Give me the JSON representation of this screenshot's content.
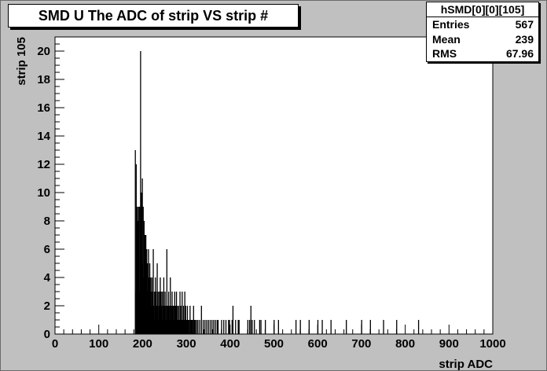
{
  "title": "SMD U The ADC of strip VS strip #",
  "stats": {
    "name": "hSMD[0][0][105]",
    "rows": [
      {
        "label": "Entries",
        "value": "567"
      },
      {
        "label": "Mean",
        "value": "239"
      },
      {
        "label": "RMS",
        "value": "67.96"
      }
    ]
  },
  "chart_data": {
    "type": "bar",
    "histogram_style": "step",
    "xlabel": "strip ADC",
    "ylabel": "strip 105",
    "xlim": [
      0,
      1000
    ],
    "ylim": [
      0,
      21
    ],
    "x_ticks": [
      0,
      100,
      200,
      300,
      400,
      500,
      600,
      700,
      800,
      900,
      1000
    ],
    "y_ticks": [
      0,
      2,
      4,
      6,
      8,
      10,
      12,
      14,
      16,
      18,
      20
    ],
    "bin_width": 1,
    "bins": [
      [
        183,
        13
      ],
      [
        184,
        3
      ],
      [
        185,
        12
      ],
      [
        186,
        7
      ],
      [
        187,
        9
      ],
      [
        188,
        9
      ],
      [
        189,
        4
      ],
      [
        190,
        8
      ],
      [
        191,
        9
      ],
      [
        192,
        3
      ],
      [
        193,
        9
      ],
      [
        194,
        8
      ],
      [
        195,
        20
      ],
      [
        196,
        6
      ],
      [
        197,
        10
      ],
      [
        198,
        6
      ],
      [
        199,
        11
      ],
      [
        200,
        5
      ],
      [
        201,
        9
      ],
      [
        202,
        4
      ],
      [
        203,
        8
      ],
      [
        204,
        6
      ],
      [
        205,
        7
      ],
      [
        206,
        4
      ],
      [
        207,
        7
      ],
      [
        208,
        5
      ],
      [
        209,
        6
      ],
      [
        210,
        3
      ],
      [
        211,
        5
      ],
      [
        212,
        4
      ],
      [
        213,
        6
      ],
      [
        214,
        2
      ],
      [
        215,
        4
      ],
      [
        216,
        5
      ],
      [
        217,
        3
      ],
      [
        218,
        4
      ],
      [
        219,
        2
      ],
      [
        220,
        3
      ],
      [
        221,
        4
      ],
      [
        222,
        2
      ],
      [
        223,
        3
      ],
      [
        224,
        6
      ],
      [
        225,
        2
      ],
      [
        226,
        1
      ],
      [
        227,
        3
      ],
      [
        228,
        2
      ],
      [
        229,
        4
      ],
      [
        230,
        3
      ],
      [
        231,
        1
      ],
      [
        232,
        2
      ],
      [
        233,
        5
      ],
      [
        234,
        2
      ],
      [
        235,
        3
      ],
      [
        236,
        1
      ],
      [
        237,
        2
      ],
      [
        238,
        3
      ],
      [
        239,
        2
      ],
      [
        240,
        4
      ],
      [
        241,
        1
      ],
      [
        242,
        3
      ],
      [
        243,
        2
      ],
      [
        244,
        1
      ],
      [
        245,
        3
      ],
      [
        246,
        2
      ],
      [
        247,
        1
      ],
      [
        248,
        4
      ],
      [
        249,
        1
      ],
      [
        250,
        2
      ],
      [
        251,
        3
      ],
      [
        252,
        1
      ],
      [
        253,
        2
      ],
      [
        254,
        1
      ],
      [
        255,
        6
      ],
      [
        256,
        1
      ],
      [
        257,
        2
      ],
      [
        258,
        1
      ],
      [
        259,
        3
      ],
      [
        260,
        2
      ],
      [
        261,
        1
      ],
      [
        262,
        2
      ],
      [
        263,
        4
      ],
      [
        264,
        1
      ],
      [
        265,
        2
      ],
      [
        266,
        1
      ],
      [
        267,
        3
      ],
      [
        268,
        1
      ],
      [
        269,
        2
      ],
      [
        270,
        1
      ],
      [
        271,
        2
      ],
      [
        272,
        1
      ],
      [
        273,
        3
      ],
      [
        274,
        1
      ],
      [
        275,
        2
      ],
      [
        276,
        1
      ],
      [
        277,
        3
      ],
      [
        278,
        1
      ],
      [
        279,
        2
      ],
      [
        280,
        1
      ],
      [
        281,
        1
      ],
      [
        282,
        2
      ],
      [
        283,
        1
      ],
      [
        284,
        1
      ],
      [
        285,
        3
      ],
      [
        286,
        1
      ],
      [
        287,
        2
      ],
      [
        288,
        1
      ],
      [
        289,
        1
      ],
      [
        290,
        3
      ],
      [
        291,
        1
      ],
      [
        292,
        1
      ],
      [
        293,
        2
      ],
      [
        294,
        1
      ],
      [
        295,
        1
      ],
      [
        296,
        3
      ],
      [
        297,
        1
      ],
      [
        298,
        2
      ],
      [
        299,
        1
      ],
      [
        300,
        1
      ],
      [
        302,
        2
      ],
      [
        304,
        1
      ],
      [
        306,
        1
      ],
      [
        308,
        2
      ],
      [
        310,
        1
      ],
      [
        312,
        1
      ],
      [
        314,
        1
      ],
      [
        316,
        2
      ],
      [
        318,
        1
      ],
      [
        320,
        1
      ],
      [
        323,
        1
      ],
      [
        326,
        1
      ],
      [
        330,
        1
      ],
      [
        334,
        2
      ],
      [
        338,
        1
      ],
      [
        342,
        1
      ],
      [
        346,
        1
      ],
      [
        350,
        1
      ],
      [
        354,
        1
      ],
      [
        358,
        1
      ],
      [
        362,
        1
      ],
      [
        366,
        1
      ],
      [
        370,
        1
      ],
      [
        372,
        1
      ],
      [
        380,
        1
      ],
      [
        385,
        1
      ],
      [
        390,
        1
      ],
      [
        396,
        1
      ],
      [
        398,
        1
      ],
      [
        404,
        1
      ],
      [
        406,
        2
      ],
      [
        412,
        1
      ],
      [
        418,
        1
      ],
      [
        420,
        1
      ],
      [
        440,
        1
      ],
      [
        444,
        1
      ],
      [
        447,
        2
      ],
      [
        450,
        1
      ],
      [
        455,
        1
      ],
      [
        467,
        1
      ],
      [
        470,
        1
      ],
      [
        480,
        1
      ],
      [
        500,
        1
      ],
      [
        510,
        1
      ],
      [
        550,
        1
      ],
      [
        560,
        1
      ],
      [
        580,
        1
      ],
      [
        600,
        1
      ],
      [
        610,
        1
      ],
      [
        630,
        1
      ],
      [
        665,
        1
      ],
      [
        700,
        1
      ],
      [
        720,
        1
      ],
      [
        750,
        1
      ],
      [
        780,
        1
      ],
      [
        830,
        1
      ]
    ]
  }
}
